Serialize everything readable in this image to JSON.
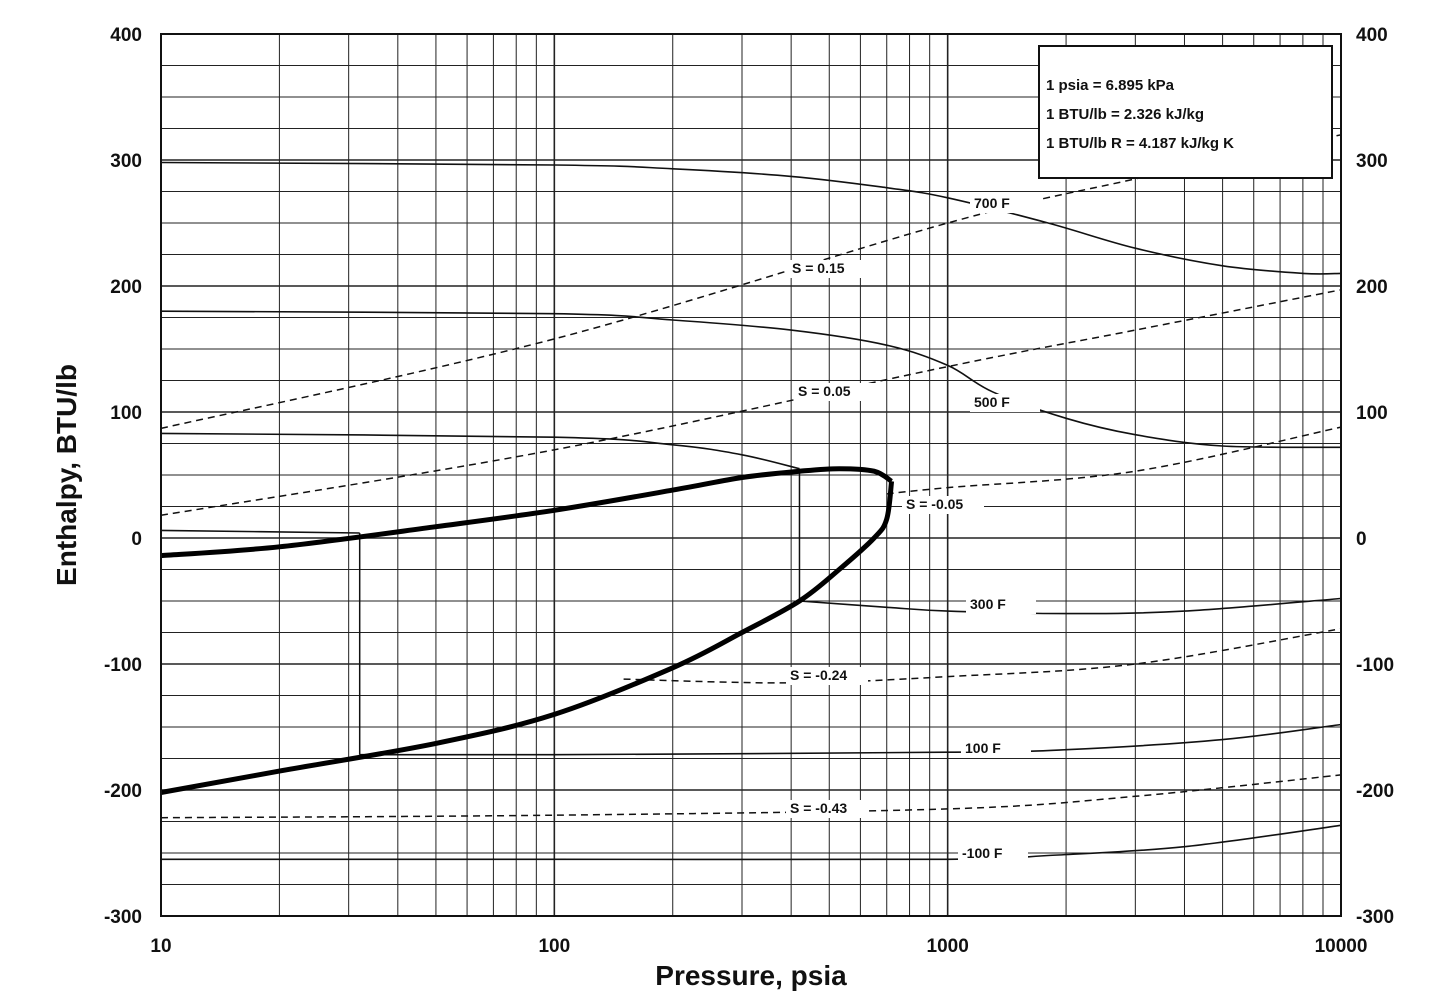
{
  "chart_data": {
    "type": "line",
    "title": "",
    "xlabel": "Pressure,  psia",
    "ylabel": "Enthalpy, BTU/lb",
    "x_scale": "log",
    "xlim": [
      10,
      10000
    ],
    "ylim": [
      -300,
      400
    ],
    "x_ticks": [
      "10",
      "100",
      "1000",
      "10000"
    ],
    "y_ticks": [
      "-300",
      "-200",
      "-100",
      "0",
      "100",
      "200",
      "300",
      "400"
    ],
    "y_ticks_right": [
      "-300",
      "-200",
      "-100",
      "0",
      "100",
      "200",
      "300",
      "400"
    ],
    "grid": true,
    "legend": {
      "position": "top-right",
      "entries": [
        "1 psia  =  6.895 kPa",
        "1 BTU/lb  =  2.326 kJ/kg",
        "1 BTU/lb R  =  4.187 kJ/kg K"
      ]
    },
    "isotherms": [
      {
        "label": "700 F",
        "points": [
          [
            10,
            298
          ],
          [
            100,
            296
          ],
          [
            200,
            293
          ],
          [
            400,
            287
          ],
          [
            700,
            278
          ],
          [
            1000,
            270
          ],
          [
            1800,
            250
          ],
          [
            3000,
            230
          ],
          [
            5000,
            216
          ],
          [
            8000,
            210
          ],
          [
            10000,
            210
          ]
        ]
      },
      {
        "label": "500 F",
        "points": [
          [
            10,
            180
          ],
          [
            100,
            178
          ],
          [
            200,
            173
          ],
          [
            400,
            165
          ],
          [
            700,
            153
          ],
          [
            1000,
            137
          ],
          [
            1300,
            116
          ],
          [
            2000,
            95
          ],
          [
            3000,
            82
          ],
          [
            5000,
            73
          ],
          [
            10000,
            72
          ]
        ]
      },
      {
        "label": "",
        "points": [
          [
            10,
            83
          ],
          [
            100,
            80
          ],
          [
            200,
            74
          ],
          [
            300,
            66
          ],
          [
            420,
            55
          ]
        ]
      },
      {
        "label": "300 F",
        "points": [
          [
            420,
            -50
          ],
          [
            700,
            -55
          ],
          [
            1000,
            -58
          ],
          [
            2000,
            -60
          ],
          [
            4000,
            -58
          ],
          [
            10000,
            -48
          ]
        ]
      },
      {
        "label": "",
        "points": [
          [
            10,
            6
          ],
          [
            32,
            4
          ]
        ]
      },
      {
        "label": "100 F",
        "points": [
          [
            32,
            -172
          ],
          [
            100,
            -172
          ],
          [
            1000,
            -170
          ],
          [
            2000,
            -168
          ],
          [
            5000,
            -160
          ],
          [
            10000,
            -148
          ]
        ]
      },
      {
        "label": "-100 F",
        "points": [
          [
            10,
            -255
          ],
          [
            100,
            -255
          ],
          [
            1000,
            -255
          ],
          [
            1800,
            -252
          ],
          [
            4000,
            -245
          ],
          [
            10000,
            -228
          ]
        ]
      }
    ],
    "isentropes": [
      {
        "label": "S = 0.15",
        "points": [
          [
            10,
            87
          ],
          [
            100,
            158
          ],
          [
            1000,
            250
          ],
          [
            3000,
            285
          ],
          [
            10000,
            320
          ]
        ]
      },
      {
        "label": "S = 0.05",
        "points": [
          [
            10,
            18
          ],
          [
            100,
            70
          ],
          [
            1000,
            136
          ],
          [
            3000,
            165
          ],
          [
            10000,
            197
          ]
        ]
      },
      {
        "label": "S = -0.05",
        "points": [
          [
            700,
            35
          ],
          [
            1000,
            40
          ],
          [
            3000,
            53
          ],
          [
            10000,
            88
          ]
        ]
      },
      {
        "label": "S = -0.24",
        "points": [
          [
            150,
            -112
          ],
          [
            400,
            -115
          ],
          [
            1000,
            -110
          ],
          [
            3000,
            -100
          ],
          [
            10000,
            -72
          ]
        ]
      },
      {
        "label": "S = -0.43",
        "points": [
          [
            10,
            -222
          ],
          [
            100,
            -220
          ],
          [
            1000,
            -215
          ],
          [
            3000,
            -205
          ],
          [
            10000,
            -188
          ]
        ]
      }
    ],
    "saturation_dome": {
      "vapor": [
        [
          10,
          -14
        ],
        [
          20,
          -7
        ],
        [
          50,
          9
        ],
        [
          100,
          22
        ],
        [
          200,
          38
        ],
        [
          300,
          48
        ],
        [
          420,
          53
        ],
        [
          530,
          55
        ],
        [
          650,
          53
        ],
        [
          720,
          45
        ]
      ],
      "liquid": [
        [
          720,
          45
        ],
        [
          700,
          15
        ],
        [
          650,
          0
        ],
        [
          530,
          -25
        ],
        [
          420,
          -50
        ],
        [
          300,
          -75
        ],
        [
          200,
          -103
        ],
        [
          100,
          -140
        ],
        [
          50,
          -163
        ],
        [
          20,
          -185
        ],
        [
          10,
          -202
        ]
      ]
    },
    "verticals": [
      {
        "x": 32,
        "y1": 4,
        "y2": -172
      },
      {
        "x": 420,
        "y1": 55,
        "y2": -50
      }
    ]
  }
}
